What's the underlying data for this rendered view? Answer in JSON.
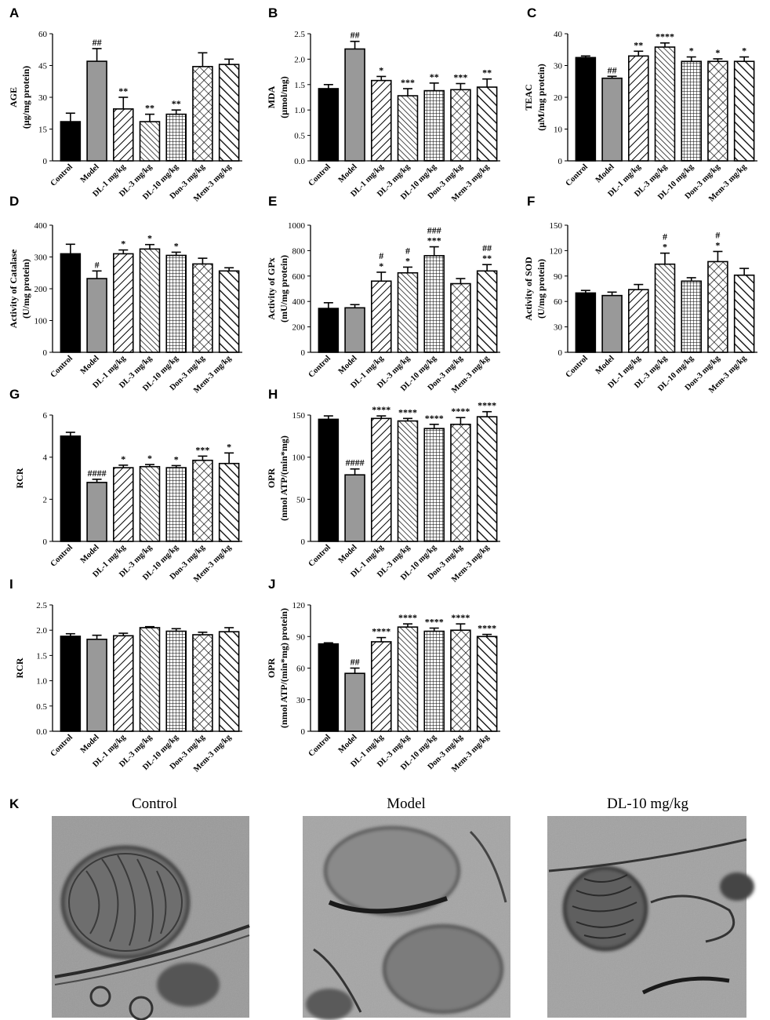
{
  "chart_data": [
    {
      "panel": "A",
      "type": "bar",
      "ylabel": "AGE",
      "ylabel_unit": "(μg/mg protein)",
      "categories": [
        "Control",
        "Model",
        "DL-1 mg/kg",
        "DL-3 mg/kg",
        "DL-10 mg/kg",
        "Don-3 mg/kg",
        "Mem-3 mg/kg"
      ],
      "values": [
        18.5,
        47,
        24.5,
        18.5,
        22,
        44.5,
        45.5
      ],
      "errors": [
        4,
        6,
        5.5,
        3.5,
        2,
        6.5,
        2.5
      ],
      "sig": [
        "",
        "##",
        "**",
        "**",
        "**",
        "",
        ""
      ],
      "ylim": [
        0,
        60
      ],
      "yticks": [
        0,
        15,
        30,
        45,
        60
      ]
    },
    {
      "panel": "B",
      "type": "bar",
      "ylabel": "MDA",
      "ylabel_unit": "(μmol/mg)",
      "categories": [
        "Control",
        "Model",
        "DL-1 mg/kg",
        "DL-3 mg/kg",
        "DL-10 mg/kg",
        "Don-3 mg/kg",
        "Mem-3 mg/kg"
      ],
      "values": [
        1.42,
        2.2,
        1.58,
        1.28,
        1.38,
        1.4,
        1.45
      ],
      "errors": [
        0.08,
        0.15,
        0.08,
        0.14,
        0.15,
        0.12,
        0.16
      ],
      "sig": [
        "",
        "##",
        "*",
        "***",
        "**",
        "***",
        "**"
      ],
      "ylim": [
        0,
        2.5
      ],
      "yticks": [
        "0.0",
        "0.5",
        "1.0",
        "1.5",
        "2.0",
        "2.5"
      ]
    },
    {
      "panel": "C",
      "type": "bar",
      "ylabel": "TEAC",
      "ylabel_unit": "(μM/mg protein)",
      "categories": [
        "Control",
        "Model",
        "DL-1 mg/kg",
        "DL-3 mg/kg",
        "DL-10 mg/kg",
        "Don-3 mg/kg",
        "Mem-3 mg/kg"
      ],
      "values": [
        32.5,
        26,
        33,
        35.8,
        31.3,
        31.3,
        31.3
      ],
      "errors": [
        0.5,
        0.6,
        1.5,
        1.3,
        1.4,
        0.8,
        1.4
      ],
      "sig": [
        "",
        "##",
        "**",
        "****",
        "*",
        "*",
        "*"
      ],
      "ylim": [
        0,
        40
      ],
      "yticks": [
        0,
        10,
        20,
        30,
        40
      ]
    },
    {
      "panel": "D",
      "type": "bar",
      "ylabel": "Activity of Catalase",
      "ylabel_unit": "(U/mg protein)",
      "categories": [
        "Control",
        "Model",
        "DL-1 mg/kg",
        "DL-3 mg/kg",
        "DL-10 mg/kg",
        "Don-3 mg/kg",
        "Mem-3 mg/kg"
      ],
      "values": [
        310,
        232,
        310,
        325,
        305,
        278,
        256
      ],
      "errors": [
        30,
        24,
        12,
        14,
        10,
        18,
        10
      ],
      "sig": [
        "",
        "#",
        "*",
        "*",
        "*",
        "",
        ""
      ],
      "ylim": [
        0,
        400
      ],
      "yticks": [
        0,
        100,
        200,
        300,
        400
      ]
    },
    {
      "panel": "E",
      "type": "bar",
      "ylabel": "Activity of GPx",
      "ylabel_unit": "(mU/mg protein)",
      "categories": [
        "Control",
        "Model",
        "DL-1 mg/kg",
        "DL-3 mg/kg",
        "DL-10 mg/kg",
        "Don-3 mg/kg",
        "Mem-3 mg/kg"
      ],
      "values": [
        345,
        350,
        560,
        625,
        760,
        540,
        640
      ],
      "errors": [
        45,
        25,
        70,
        45,
        70,
        40,
        50
      ],
      "sig": [
        "",
        "",
        "#\n*",
        "#\n*",
        "###\n***",
        "",
        "##\n**"
      ],
      "ylim": [
        0,
        1000
      ],
      "yticks": [
        0,
        200,
        400,
        600,
        800,
        1000
      ]
    },
    {
      "panel": "F",
      "type": "bar",
      "ylabel": "Activity of SOD",
      "ylabel_unit": "(U/mg protein)",
      "categories": [
        "Control",
        "Model",
        "DL-1 mg/kg",
        "DL-3 mg/kg",
        "DL-10 mg/kg",
        "Don-3 mg/kg",
        "Mem-3 mg/kg"
      ],
      "values": [
        70,
        67,
        74,
        104,
        84,
        107,
        91
      ],
      "errors": [
        3,
        4,
        6,
        13,
        4,
        12,
        8
      ],
      "sig": [
        "",
        "",
        "",
        "#\n*",
        "",
        "#\n*",
        ""
      ],
      "ylim": [
        0,
        150
      ],
      "yticks": [
        0,
        30,
        60,
        90,
        120,
        150
      ]
    },
    {
      "panel": "G",
      "type": "bar",
      "ylabel": "RCR",
      "ylabel_unit": "",
      "categories": [
        "Control",
        "Model",
        "DL-1 mg/kg",
        "DL-3 mg/kg",
        "DL-10 mg/kg",
        "Don-3 mg/kg",
        "Mem-3 mg/kg"
      ],
      "values": [
        5.0,
        2.8,
        3.5,
        3.55,
        3.5,
        3.85,
        3.7
      ],
      "errors": [
        0.18,
        0.15,
        0.12,
        0.1,
        0.1,
        0.2,
        0.5
      ],
      "sig": [
        "",
        "####",
        "*",
        "*",
        "*",
        "***",
        "*"
      ],
      "ylim": [
        0,
        6
      ],
      "yticks": [
        0,
        2,
        4,
        6
      ]
    },
    {
      "panel": "H",
      "type": "bar",
      "ylabel": "OPR",
      "ylabel_unit": "(nmol ATP/(min*mg)",
      "categories": [
        "Control",
        "Model",
        "DL-1 mg/kg",
        "DL-3 mg/kg",
        "DL-10 mg/kg",
        "Don-3 mg/kg",
        "Mem-3 mg/kg"
      ],
      "values": [
        145,
        79,
        146,
        143,
        134,
        139,
        148
      ],
      "errors": [
        4,
        7,
        3,
        3,
        5,
        8,
        6
      ],
      "sig": [
        "",
        "####",
        "****",
        "****",
        "****",
        "****",
        "****"
      ],
      "ylim": [
        0,
        150
      ],
      "yticks": [
        0,
        50,
        100,
        150
      ]
    },
    {
      "panel": "I",
      "type": "bar",
      "ylabel": "RCR",
      "ylabel_unit": "",
      "categories": [
        "Control",
        "Model",
        "DL-1 mg/kg",
        "DL-3 mg/kg",
        "DL-10 mg/kg",
        "Don-3 mg/kg",
        "Mem-3 mg/kg"
      ],
      "values": [
        1.88,
        1.82,
        1.89,
        2.05,
        1.98,
        1.91,
        1.97
      ],
      "errors": [
        0.05,
        0.08,
        0.05,
        0.02,
        0.05,
        0.05,
        0.08
      ],
      "sig": [
        "",
        "",
        "",
        "",
        "",
        "",
        ""
      ],
      "ylim": [
        0,
        2.5
      ],
      "yticks": [
        "0.0",
        "0.5",
        "1.0",
        "1.5",
        "2.0",
        "2.5"
      ]
    },
    {
      "panel": "J",
      "type": "bar",
      "ylabel": "OPR",
      "ylabel_unit": "(nmol ATP/(min*mg) protein)",
      "categories": [
        "Control",
        "Model",
        "DL-1 mg/kg",
        "DL-3 mg/kg",
        "DL-10 mg/kg",
        "Don-3 mg/kg",
        "Mem-3 mg/kg"
      ],
      "values": [
        83,
        55,
        85,
        99,
        95,
        96,
        90
      ],
      "errors": [
        1,
        5,
        4,
        3,
        3,
        6,
        2
      ],
      "sig": [
        "",
        "##",
        "****",
        "****",
        "****",
        "****",
        "****"
      ],
      "ylim": [
        0,
        120
      ],
      "yticks": [
        0,
        30,
        60,
        90,
        120
      ]
    }
  ],
  "em_panel": {
    "letter": "K",
    "captions": [
      "Control",
      "Model",
      "DL-10 mg/kg"
    ]
  },
  "colors": {
    "control": "#000000",
    "model": "#999999",
    "stroke": "#000000"
  },
  "patterns": [
    "solid",
    "solid",
    "diag-right-wide",
    "diag-left",
    "grid",
    "diamond",
    "diag-left-wide"
  ]
}
